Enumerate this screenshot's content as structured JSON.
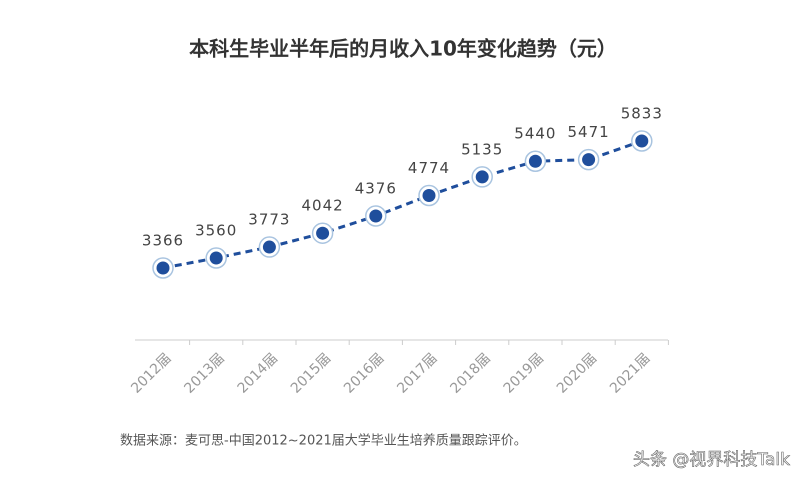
{
  "chart_data": {
    "type": "line",
    "title": "本科生毕业半年后的月收入10年变化趋势（元）",
    "categories": [
      "2012届",
      "2013届",
      "2014届",
      "2015届",
      "2016届",
      "2017届",
      "2018届",
      "2019届",
      "2020届",
      "2021届"
    ],
    "series": [
      {
        "name": "月收入",
        "color": "#1f4e9c",
        "values": [
          3366,
          3560,
          3773,
          4042,
          4376,
          4774,
          5135,
          5440,
          5471,
          5833
        ]
      }
    ],
    "source": "数据来源：麦可思-中国2012~2021届大学毕业生培养质量跟踪评价。",
    "watermark": "头条 @视界科技Talk"
  }
}
